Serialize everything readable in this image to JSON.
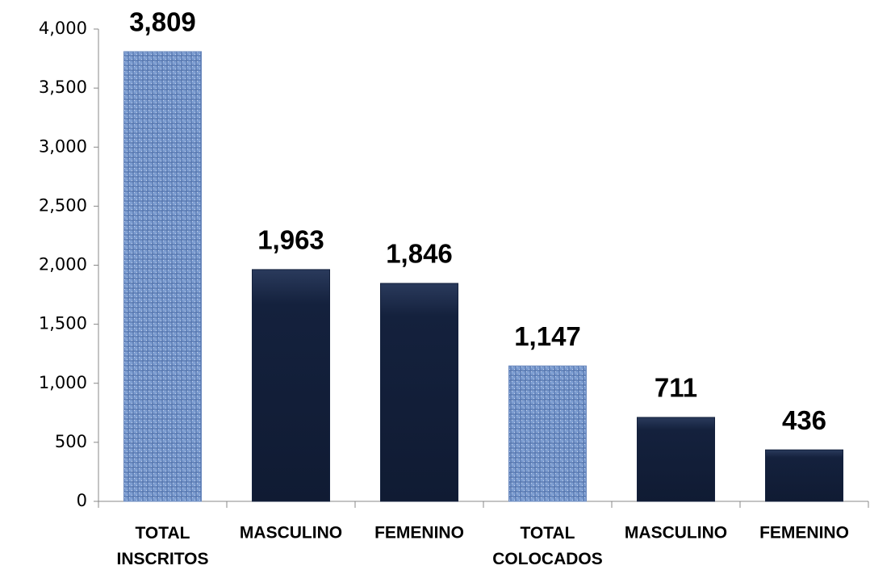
{
  "chart_data": {
    "type": "bar",
    "categories": [
      "TOTAL INSCRITOS",
      "MASCULINO",
      "FEMENINO",
      "TOTAL COLOCADOS",
      "MASCULINO",
      "FEMENINO"
    ],
    "values": [
      3809,
      1963,
      1846,
      1147,
      711,
      436
    ],
    "value_labels": [
      "3,809",
      "1,963",
      "1,846",
      "1,147",
      "711",
      "436"
    ],
    "colors": [
      "#7f9fd2",
      "#14213d",
      "#14213d",
      "#7f9fd2",
      "#14213d",
      "#14213d"
    ],
    "ylim": [
      0,
      4000
    ],
    "yticks": [
      0,
      500,
      {
        "value": 1000,
        "label": "1,000"
      },
      {
        "value": 1500,
        "label": "1,500"
      },
      {
        "value": 2000,
        "label": "2,000"
      },
      {
        "value": 2500,
        "label": "2,500"
      },
      {
        "value": 3000,
        "label": "3,000"
      },
      {
        "value": 3500,
        "label": "3,500"
      },
      {
        "value": 4000,
        "label": "4,000"
      }
    ],
    "grid": false
  }
}
